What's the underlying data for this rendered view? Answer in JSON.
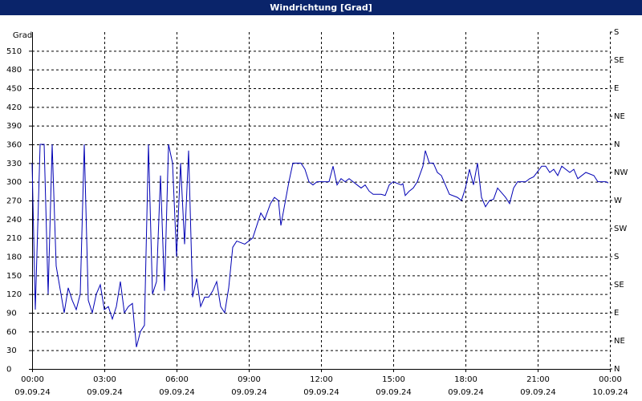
{
  "chart_data": {
    "type": "line",
    "title": "Windrichtung [Grad]",
    "y_label": "Grad",
    "xlim": [
      0,
      1440
    ],
    "xticks": [
      {
        "value": 0,
        "label": "00:00",
        "date": "09.09.24"
      },
      {
        "value": 180,
        "label": "03:00",
        "date": "09.09.24"
      },
      {
        "value": 360,
        "label": "06:00",
        "date": "09.09.24"
      },
      {
        "value": 540,
        "label": "09:00",
        "date": "09.09.24"
      },
      {
        "value": 720,
        "label": "12:00",
        "date": "09.09.24"
      },
      {
        "value": 900,
        "label": "15:00",
        "date": "09.09.24"
      },
      {
        "value": 1080,
        "label": "18:00",
        "date": "09.09.24"
      },
      {
        "value": 1260,
        "label": "21:00",
        "date": "09.09.24"
      },
      {
        "value": 1440,
        "label": "00:00",
        "date": "10.09.24"
      }
    ],
    "ylim": [
      0,
      540
    ],
    "yticks": [
      0,
      30,
      60,
      90,
      120,
      150,
      180,
      210,
      240,
      270,
      300,
      330,
      360,
      390,
      420,
      450,
      480,
      510
    ],
    "y2lim": [
      0,
      540
    ],
    "y2ticks": [
      {
        "value": 0,
        "label": "N"
      },
      {
        "value": 45,
        "label": "NE"
      },
      {
        "value": 90,
        "label": "E"
      },
      {
        "value": 135,
        "label": "SE"
      },
      {
        "value": 180,
        "label": "S"
      },
      {
        "value": 225,
        "label": "SW"
      },
      {
        "value": 270,
        "label": "W"
      },
      {
        "value": 315,
        "label": "NW"
      },
      {
        "value": 360,
        "label": "N"
      },
      {
        "value": 405,
        "label": "NE"
      },
      {
        "value": 450,
        "label": "E"
      },
      {
        "value": 495,
        "label": "SE"
      },
      {
        "value": 540,
        "label": "S"
      }
    ],
    "grid": true,
    "series": [
      {
        "color": "#0000b4",
        "x": [
          0,
          8,
          20,
          30,
          40,
          50,
          60,
          80,
          90,
          100,
          110,
          120,
          130,
          140,
          150,
          160,
          170,
          180,
          190,
          200,
          210,
          220,
          230,
          240,
          250,
          260,
          270,
          280,
          290,
          300,
          310,
          320,
          330,
          340,
          350,
          360,
          370,
          380,
          390,
          400,
          410,
          420,
          430,
          440,
          450,
          460,
          470,
          480,
          490,
          500,
          510,
          530,
          550,
          570,
          580,
          594,
          604,
          614,
          620,
          630,
          640,
          650,
          670,
          680,
          690,
          700,
          710,
          730,
          740,
          750,
          760,
          770,
          780,
          790,
          800,
          810,
          820,
          830,
          840,
          850,
          870,
          880,
          890,
          900,
          920,
          924,
          930,
          940,
          950,
          960,
          974,
          980,
          990,
          1000,
          1010,
          1020,
          1030,
          1040,
          1060,
          1070,
          1080,
          1090,
          1100,
          1110,
          1120,
          1130,
          1140,
          1150,
          1160,
          1180,
          1190,
          1200,
          1210,
          1230,
          1240,
          1250,
          1270,
          1280,
          1290,
          1300,
          1310,
          1320,
          1340,
          1350,
          1360,
          1380,
          1400,
          1410,
          1430,
          1436
        ],
        "values": [
          330,
          95,
          360,
          360,
          120,
          360,
          165,
          90,
          130,
          110,
          95,
          120,
          360,
          110,
          90,
          120,
          135,
          95,
          100,
          80,
          100,
          140,
          90,
          100,
          105,
          35,
          60,
          70,
          360,
          120,
          140,
          310,
          125,
          360,
          330,
          180,
          330,
          200,
          350,
          115,
          145,
          100,
          115,
          115,
          125,
          140,
          100,
          90,
          130,
          195,
          205,
          200,
          210,
          250,
          240,
          265,
          275,
          270,
          230,
          265,
          300,
          330,
          330,
          320,
          300,
          295,
          300,
          300,
          300,
          325,
          295,
          305,
          300,
          305,
          300,
          295,
          290,
          295,
          285,
          280,
          280,
          278,
          295,
          300,
          295,
          297,
          278,
          285,
          290,
          300,
          325,
          350,
          330,
          330,
          315,
          310,
          295,
          280,
          275,
          270,
          290,
          320,
          295,
          330,
          275,
          260,
          270,
          272,
          290,
          275,
          265,
          290,
          300,
          300,
          305,
          308,
          325,
          325,
          315,
          320,
          310,
          325,
          315,
          320,
          305,
          315,
          310,
          300,
          300,
          298
        ]
      }
    ]
  }
}
